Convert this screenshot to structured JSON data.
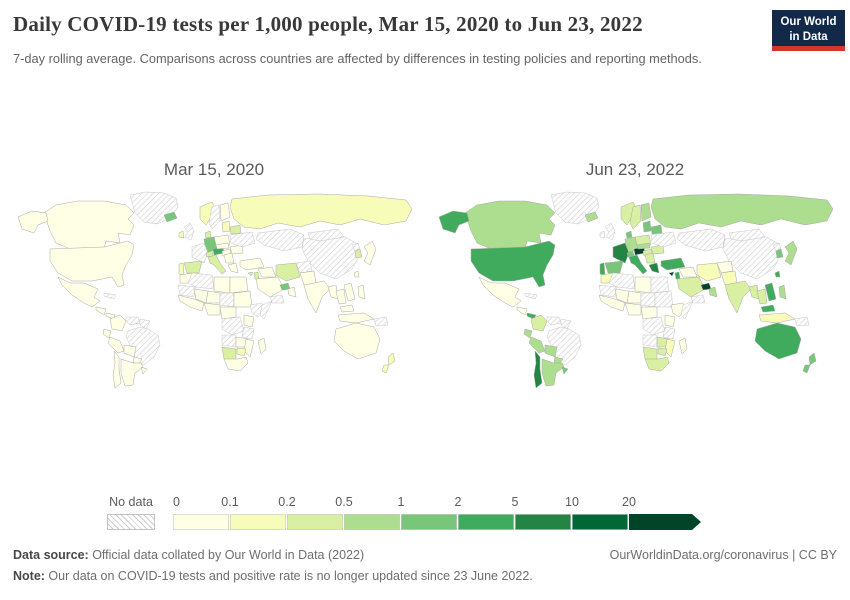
{
  "header": {
    "title": "Daily COVID-19 tests per 1,000 people, Mar 15, 2020 to Jun 23, 2022",
    "subtitle": "7-day rolling average. Comparisons across countries are affected by differences in testing policies and reporting methods.",
    "logo": {
      "line1": "Our World",
      "line2": "in Data"
    }
  },
  "maps": [
    {
      "label": "Mar 15, 2020"
    },
    {
      "label": "Jun 23, 2022"
    }
  ],
  "legend": {
    "no_data_label": "No data",
    "tick_labels": [
      "0",
      "0.1",
      "0.2",
      "0.5",
      "1",
      "2",
      "5",
      "10",
      "20"
    ],
    "thresholds": [
      0.1,
      0.2,
      0.5,
      1,
      2,
      5,
      10,
      20
    ],
    "colors": [
      "#ffffe5",
      "#f7fcb9",
      "#d9f0a3",
      "#addd8e",
      "#78c679",
      "#41ab5d",
      "#238443",
      "#006837",
      "#004529"
    ],
    "no_data_border": "#c2c2c2"
  },
  "footer": {
    "source_label": "Data source:",
    "source_text": " Official data collated by Our World in Data (2022)",
    "right_text": "OurWorldinData.org/coronavirus | CC BY",
    "note_label": "Note:",
    "note_text": " Our data on COVID-19 tests and positive rate is no longer updated since 23 June 2022."
  },
  "chart_data": {
    "type": "heatmap",
    "subtype": "world-choropleth-pair",
    "title": "Daily COVID-19 tests per 1,000 people",
    "unit": "daily tests per 1,000 people (7-day rolling average)",
    "dates": [
      "Mar 15, 2020",
      "Jun 23, 2022"
    ],
    "scale_thresholds": [
      0.1,
      0.2,
      0.5,
      1,
      2,
      5,
      10,
      20
    ],
    "scale_colors": [
      "#ffffe5",
      "#f7fcb9",
      "#d9f0a3",
      "#addd8e",
      "#78c679",
      "#41ab5d",
      "#238443",
      "#006837",
      "#004529"
    ],
    "no_data_style": "gray-diagonal-hatch",
    "countries": [
      {
        "name": "Greenland",
        "v2020": null,
        "v2022": null,
        "shapes": [
          "greenland"
        ]
      },
      {
        "name": "Canada",
        "v2020": 0.05,
        "v2022": 0.7,
        "shapes": [
          "canada"
        ]
      },
      {
        "name": "United States",
        "v2020": 0.01,
        "v2022": 2.2,
        "shapes": [
          "usa",
          "alaska"
        ]
      },
      {
        "name": "Mexico",
        "v2020": 0.004,
        "v2022": 0.02,
        "shapes": [
          "mexico"
        ]
      },
      {
        "name": "Cuba",
        "v2020": null,
        "v2022": null,
        "shapes": [
          "cuba"
        ]
      },
      {
        "name": "Central America",
        "v2020": 0.01,
        "v2022": 0.05,
        "shapes": [
          "central_america"
        ]
      },
      {
        "name": "Panama",
        "v2020": 0.05,
        "v2022": 2.5,
        "shapes": [
          "panama"
        ]
      },
      {
        "name": "Colombia",
        "v2020": 0.005,
        "v2022": 0.25,
        "shapes": [
          "colombia"
        ]
      },
      {
        "name": "Venezuela",
        "v2020": null,
        "v2022": null,
        "shapes": [
          "venezuela"
        ]
      },
      {
        "name": "Guyana & Suriname",
        "v2020": null,
        "v2022": null,
        "shapes": [
          "guyanas"
        ]
      },
      {
        "name": "Ecuador",
        "v2020": 0.01,
        "v2022": 0.6,
        "shapes": [
          "ecuador"
        ]
      },
      {
        "name": "Peru",
        "v2020": 0.005,
        "v2022": 0.7,
        "shapes": [
          "peru"
        ]
      },
      {
        "name": "Brazil",
        "v2020": null,
        "v2022": null,
        "shapes": [
          "brazil"
        ]
      },
      {
        "name": "Bolivia",
        "v2020": 0.004,
        "v2022": 0.6,
        "shapes": [
          "bolivia"
        ]
      },
      {
        "name": "Paraguay",
        "v2020": 0.003,
        "v2022": 0.6,
        "shapes": [
          "paraguay"
        ]
      },
      {
        "name": "Chile",
        "v2020": 0.03,
        "v2022": 6,
        "shapes": [
          "chile"
        ]
      },
      {
        "name": "Argentina",
        "v2020": 0.004,
        "v2022": 0.6,
        "shapes": [
          "argentina"
        ]
      },
      {
        "name": "Uruguay",
        "v2020": 0.01,
        "v2022": 1.5,
        "shapes": [
          "uruguay"
        ]
      },
      {
        "name": "Iceland",
        "v2020": 1.2,
        "v2022": 0.6,
        "shapes": [
          "iceland"
        ]
      },
      {
        "name": "United Kingdom",
        "v2020": null,
        "v2022": null,
        "shapes": [
          "uk"
        ]
      },
      {
        "name": "Ireland",
        "v2020": 0.12,
        "v2022": null,
        "shapes": [
          "ireland"
        ]
      },
      {
        "name": "Norway",
        "v2020": 0.15,
        "v2022": 0.4,
        "shapes": [
          "norway"
        ]
      },
      {
        "name": "Sweden",
        "v2020": null,
        "v2022": 0.3,
        "shapes": [
          "sweden"
        ]
      },
      {
        "name": "Finland",
        "v2020": 0.04,
        "v2022": 0.6,
        "shapes": [
          "finland"
        ]
      },
      {
        "name": "Denmark",
        "v2020": 0.3,
        "v2022": 1.5,
        "shapes": [
          "denmark"
        ]
      },
      {
        "name": "Baltic states",
        "v2020": 0.1,
        "v2022": 1.2,
        "shapes": [
          "baltics"
        ]
      },
      {
        "name": "Belarus",
        "v2020": 0.3,
        "v2022": 1.2,
        "shapes": [
          "belarus"
        ]
      },
      {
        "name": "Poland",
        "v2020": 0.05,
        "v2022": 0.35,
        "shapes": [
          "poland"
        ]
      },
      {
        "name": "Germany",
        "v2020": 1.2,
        "v2022": 0.8,
        "shapes": [
          "germany"
        ]
      },
      {
        "name": "France",
        "v2020": null,
        "v2022": 6.5,
        "shapes": [
          "france"
        ]
      },
      {
        "name": "Spain",
        "v2020": 0.25,
        "v2022": 1.8,
        "shapes": [
          "spain"
        ]
      },
      {
        "name": "Portugal",
        "v2020": 0.1,
        "v2022": 3,
        "shapes": [
          "portugal"
        ]
      },
      {
        "name": "Switzerland",
        "v2020": 0.4,
        "v2022": 1.2,
        "shapes": [
          "switzerland"
        ]
      },
      {
        "name": "Austria",
        "v2020": 2.5,
        "v2022": 28,
        "shapes": [
          "austria"
        ]
      },
      {
        "name": "Czechia & Slovakia",
        "v2020": 0.08,
        "v2022": 0.6,
        "shapes": [
          "czech_slovakia"
        ]
      },
      {
        "name": "Hungary",
        "v2020": 0.08,
        "v2022": 0.3,
        "shapes": [
          "hungary"
        ]
      },
      {
        "name": "Italy",
        "v2020": 0.25,
        "v2022": 4.5,
        "shapes": [
          "italy"
        ]
      },
      {
        "name": "Balkans",
        "v2020": 0.05,
        "v2022": 0.4,
        "shapes": [
          "balkans"
        ]
      },
      {
        "name": "Romania",
        "v2020": 0.05,
        "v2022": 0.3,
        "shapes": [
          "romania"
        ]
      },
      {
        "name": "Ukraine",
        "v2020": null,
        "v2022": null,
        "shapes": [
          "ukraine"
        ]
      },
      {
        "name": "Greece",
        "v2020": 0.08,
        "v2022": 8,
        "shapes": [
          "greece"
        ]
      },
      {
        "name": "Turkey",
        "v2020": 0.03,
        "v2022": 2.5,
        "shapes": [
          "turkey"
        ]
      },
      {
        "name": "Cyprus",
        "v2020": 0.3,
        "v2022": 25,
        "shapes": [
          "cyprus"
        ]
      },
      {
        "name": "Russia",
        "v2020": 0.15,
        "v2022": 0.8,
        "shapes": [
          "russia"
        ]
      },
      {
        "name": "Central Asia",
        "v2020": null,
        "v2022": null,
        "shapes": [
          "kazakh_centralasia"
        ]
      },
      {
        "name": "China",
        "v2020": null,
        "v2022": null,
        "shapes": [
          "china"
        ]
      },
      {
        "name": "Mongolia",
        "v2020": null,
        "v2022": null,
        "shapes": [
          "mongolia"
        ]
      },
      {
        "name": "North Korea",
        "v2020": null,
        "v2022": null,
        "shapes": [
          "nkorea"
        ]
      },
      {
        "name": "South Korea",
        "v2020": 0.3,
        "v2022": 1.5,
        "shapes": [
          "skorea"
        ]
      },
      {
        "name": "Japan",
        "v2020": 0.02,
        "v2022": 0.6,
        "shapes": [
          "japan"
        ]
      },
      {
        "name": "Taiwan",
        "v2020": 0.05,
        "v2022": 3.5,
        "shapes": [
          "taiwan"
        ]
      },
      {
        "name": "Iraq & Syria",
        "v2020": 0.01,
        "v2022": 0.05,
        "shapes": [
          "iraq_syria"
        ]
      },
      {
        "name": "Israel",
        "v2020": 0.25,
        "v2022": 2.5,
        "shapes": [
          "israel"
        ]
      },
      {
        "name": "Iran",
        "v2020": 0.25,
        "v2022": 0.12,
        "shapes": [
          "iran"
        ]
      },
      {
        "name": "Saudi Arabia",
        "v2020": 0.02,
        "v2022": 0.3,
        "shapes": [
          "saudi"
        ]
      },
      {
        "name": "United Arab Emirates & Qatar",
        "v2020": 1.5,
        "v2022": 24,
        "shapes": [
          "uae_qatar"
        ]
      },
      {
        "name": "Oman",
        "v2020": 0.02,
        "v2022": 0.8,
        "shapes": [
          "oman"
        ]
      },
      {
        "name": "Yemen",
        "v2020": null,
        "v2022": null,
        "shapes": [
          "yemen"
        ]
      },
      {
        "name": "Afghanistan",
        "v2020": null,
        "v2022": 0.02,
        "shapes": [
          "afghanistan"
        ]
      },
      {
        "name": "Pakistan",
        "v2020": 0.005,
        "v2022": 0.1,
        "shapes": [
          "pakistan"
        ]
      },
      {
        "name": "India",
        "v2020": 0.002,
        "v2022": 0.4,
        "shapes": [
          "india"
        ]
      },
      {
        "name": "Myanmar",
        "v2020": 0.003,
        "v2022": 0.3,
        "shapes": [
          "myanmar"
        ]
      },
      {
        "name": "Thailand",
        "v2020": 0.01,
        "v2022": 0.3,
        "shapes": [
          "thailand"
        ]
      },
      {
        "name": "Vietnam",
        "v2020": 0.05,
        "v2022": 2.5,
        "shapes": [
          "vietnam"
        ]
      },
      {
        "name": "Malaysia",
        "v2020": 0.03,
        "v2022": 4,
        "shapes": [
          "malaysia"
        ]
      },
      {
        "name": "Indonesia",
        "v2020": 0.001,
        "v2022": 0.1,
        "shapes": [
          "indonesia"
        ]
      },
      {
        "name": "Philippines",
        "v2020": 0.003,
        "v2022": 0.6,
        "shapes": [
          "philippines"
        ]
      },
      {
        "name": "Papua New Guinea",
        "v2020": null,
        "v2022": null,
        "shapes": [
          "png"
        ]
      },
      {
        "name": "Morocco",
        "v2020": 0.003,
        "v2022": 0.1,
        "shapes": [
          "morocco"
        ]
      },
      {
        "name": "Algeria",
        "v2020": null,
        "v2022": null,
        "shapes": [
          "algeria"
        ]
      },
      {
        "name": "Libya",
        "v2020": 0.01,
        "v2022": 0.02,
        "shapes": [
          "libya"
        ]
      },
      {
        "name": "Egypt",
        "v2020": 0.005,
        "v2022": null,
        "shapes": [
          "egypt"
        ]
      },
      {
        "name": "Mauritania",
        "v2020": null,
        "v2022": null,
        "shapes": [
          "mauritania"
        ]
      },
      {
        "name": "Mali",
        "v2020": 0.002,
        "v2022": 0.02,
        "shapes": [
          "mali"
        ]
      },
      {
        "name": "Niger",
        "v2020": 0.002,
        "v2022": 0.01,
        "shapes": [
          "niger"
        ]
      },
      {
        "name": "Chad",
        "v2020": null,
        "v2022": null,
        "shapes": [
          "chad"
        ]
      },
      {
        "name": "Sudan",
        "v2020": 0.003,
        "v2022": null,
        "shapes": [
          "sudan"
        ]
      },
      {
        "name": "West Africa",
        "v2020": 0.005,
        "v2022": 0.02,
        "shapes": [
          "west_africa"
        ]
      },
      {
        "name": "Nigeria",
        "v2020": 0.002,
        "v2022": 0.01,
        "shapes": [
          "nigeria"
        ]
      },
      {
        "name": "Cameroon & CAR",
        "v2020": 0.003,
        "v2022": 0.01,
        "shapes": [
          "cameroon_car"
        ]
      },
      {
        "name": "Ethiopia",
        "v2020": null,
        "v2022": 0.03,
        "shapes": [
          "ethiopia"
        ]
      },
      {
        "name": "Somalia",
        "v2020": null,
        "v2022": null,
        "shapes": [
          "somalia"
        ]
      },
      {
        "name": "DR Congo",
        "v2020": null,
        "v2022": null,
        "shapes": [
          "drc"
        ]
      },
      {
        "name": "Kenya",
        "v2020": 0.005,
        "v2022": 0.02,
        "shapes": [
          "kenya"
        ]
      },
      {
        "name": "Tanzania",
        "v2020": null,
        "v2022": null,
        "shapes": [
          "tanzania"
        ]
      },
      {
        "name": "Angola",
        "v2020": null,
        "v2022": null,
        "shapes": [
          "angola"
        ]
      },
      {
        "name": "Zambia",
        "v2020": 0.01,
        "v2022": 0.3,
        "shapes": [
          "zambia"
        ]
      },
      {
        "name": "Mozambique",
        "v2020": 0.005,
        "v2022": 0.1,
        "shapes": [
          "mozambique"
        ]
      },
      {
        "name": "Zimbabwe",
        "v2020": 0.15,
        "v2022": 0.25,
        "shapes": [
          "zimbabwe"
        ]
      },
      {
        "name": "Namibia & Botswana",
        "v2020": 0.3,
        "v2022": 0.3,
        "shapes": [
          "namibia_botswana"
        ]
      },
      {
        "name": "South Africa",
        "v2020": 0.02,
        "v2022": 0.3,
        "shapes": [
          "south_africa"
        ]
      },
      {
        "name": "Madagascar",
        "v2020": 0.003,
        "v2022": 0.02,
        "shapes": [
          "madagascar"
        ]
      },
      {
        "name": "Australia",
        "v2020": 0.06,
        "v2022": 3.3,
        "shapes": [
          "australia"
        ]
      },
      {
        "name": "New Zealand",
        "v2020": 0.1,
        "v2022": 1.2,
        "shapes": [
          "new_zealand"
        ]
      }
    ]
  }
}
